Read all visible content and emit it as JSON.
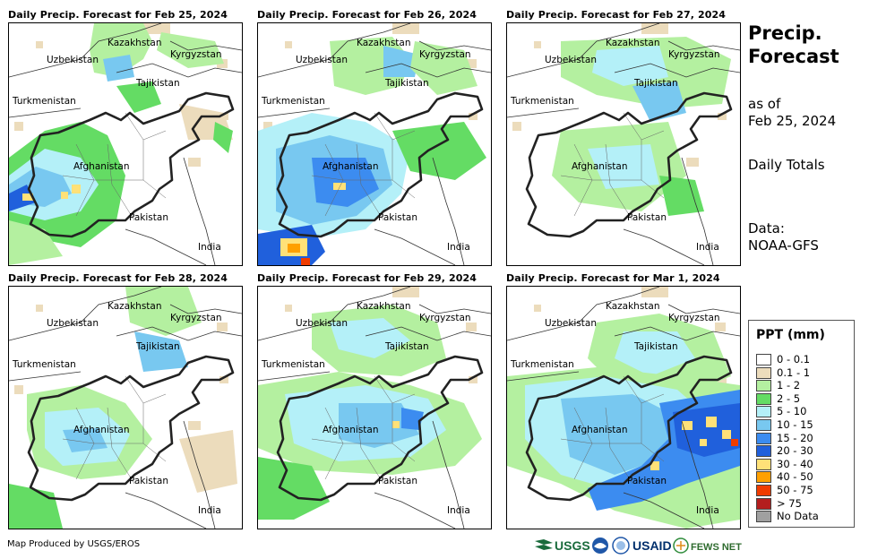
{
  "panels": [
    {
      "title": "Daily Precip. Forecast for Feb 25, 2024"
    },
    {
      "title": "Daily Precip. Forecast for Feb 26, 2024"
    },
    {
      "title": "Daily Precip. Forecast for Feb 27, 2024"
    },
    {
      "title": "Daily Precip. Forecast for Feb 28, 2024"
    },
    {
      "title": "Daily Precip. Forecast for Feb 29, 2024"
    },
    {
      "title": "Daily Precip. Forecast for Mar 1, 2024"
    }
  ],
  "map_labels": {
    "kazakhstan": "Kazakhstan",
    "kyrgyzstan": "Kyrgyzstan",
    "uzbekistan": "Uzbekistan",
    "tajikistan": "Tajikistan",
    "turkmenistan": "Turkmenistan",
    "afghanistan": "Afghanistan",
    "pakistan": "Pakistan",
    "india": "India"
  },
  "side": {
    "title_line1": "Precip.",
    "title_line2": "Forecast",
    "as_of": "as of",
    "date": "Feb 25, 2024",
    "totals": "Daily Totals",
    "data_label": "Data:",
    "data_source": "NOAA-GFS"
  },
  "legend": {
    "title": "PPT (mm)",
    "items": [
      {
        "label": "0 - 0.1",
        "color": "#ffffff"
      },
      {
        "label": "0.1 - 1",
        "color": "#ecdcbc"
      },
      {
        "label": "1 - 2",
        "color": "#b4f0a0"
      },
      {
        "label": "2 - 5",
        "color": "#64dc64"
      },
      {
        "label": "5 - 10",
        "color": "#b4f0f8"
      },
      {
        "label": "10 - 15",
        "color": "#78c8f0"
      },
      {
        "label": "15 - 20",
        "color": "#3c8cf0"
      },
      {
        "label": "20 - 30",
        "color": "#2060dc"
      },
      {
        "label": "30 - 40",
        "color": "#ffe178"
      },
      {
        "label": "40 - 50",
        "color": "#ffa000"
      },
      {
        "label": "50 - 75",
        "color": "#f03c00"
      },
      {
        "label": "> 75",
        "color": "#b41e1e"
      },
      {
        "label": "No Data",
        "color": "#a0a0a0"
      }
    ]
  },
  "footer": {
    "credit": "Map Produced by USGS/EROS",
    "logo_usgs": "USGS",
    "logo_usaid": "USAID",
    "logo_fewsnet": "FEWS NET"
  }
}
